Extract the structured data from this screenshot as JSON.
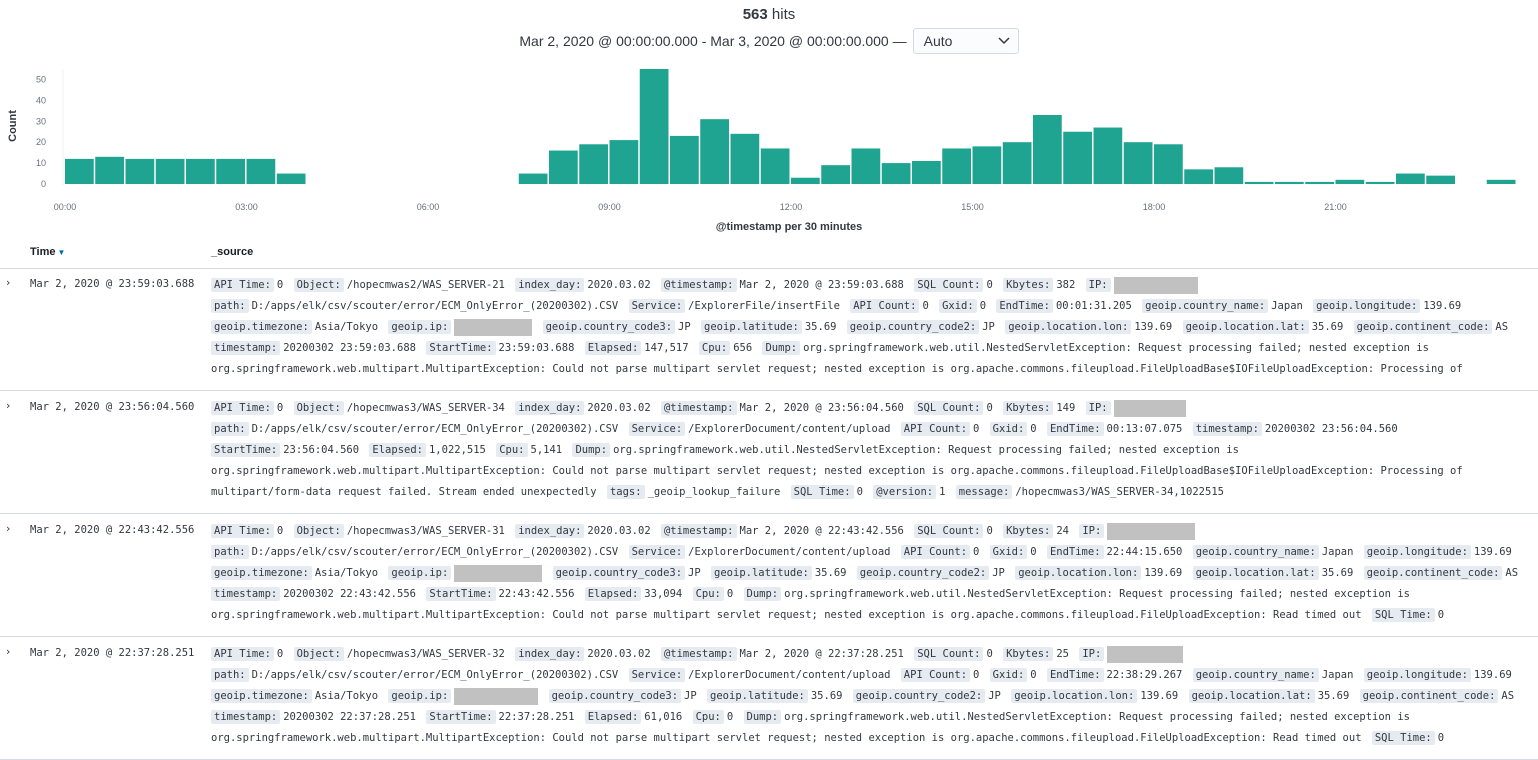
{
  "header": {
    "hit_count": "563",
    "hits_label": "hits",
    "time_range": "Mar 2, 2020 @ 00:00:00.000 - Mar 3, 2020 @ 00:00:00.000 —",
    "interval": "Auto"
  },
  "chart_data": {
    "type": "bar",
    "ylabel": "Count",
    "xlabel": "@timestamp per 30 minutes",
    "ylim": [
      0,
      55
    ],
    "yticks": [
      "0",
      "10",
      "20",
      "30",
      "40",
      "50"
    ],
    "xtick_labels": [
      "00:00",
      "03:00",
      "06:00",
      "09:00",
      "12:00",
      "15:00",
      "18:00",
      "21:00"
    ],
    "color": "#20a492",
    "categories": [
      "00:00",
      "00:30",
      "01:00",
      "01:30",
      "02:00",
      "02:30",
      "03:00",
      "03:30",
      "04:00",
      "04:30",
      "05:00",
      "05:30",
      "06:00",
      "06:30",
      "07:00",
      "07:30",
      "08:00",
      "08:30",
      "09:00",
      "09:30",
      "10:00",
      "10:30",
      "11:00",
      "11:30",
      "12:00",
      "12:30",
      "13:00",
      "13:30",
      "14:00",
      "14:30",
      "15:00",
      "15:30",
      "16:00",
      "16:30",
      "17:00",
      "17:30",
      "18:00",
      "18:30",
      "19:00",
      "19:30",
      "20:00",
      "20:30",
      "21:00",
      "21:30",
      "22:00",
      "22:30",
      "23:00",
      "23:30"
    ],
    "values": [
      12,
      13,
      12,
      12,
      12,
      12,
      12,
      5,
      0,
      0,
      0,
      0,
      0,
      0,
      0,
      5,
      16,
      19,
      21,
      55,
      23,
      31,
      24,
      17,
      3,
      9,
      17,
      10,
      11,
      17,
      18,
      20,
      33,
      25,
      27,
      20,
      19,
      7,
      8,
      1,
      1,
      1,
      2,
      1,
      5,
      4,
      0,
      2
    ]
  },
  "table": {
    "columns": {
      "time": "Time",
      "source": "_source"
    },
    "rows": [
      {
        "time": "Mar 2, 2020 @ 23:59:03.688",
        "fields": [
          {
            "k": "API Time:",
            "v": "0"
          },
          {
            "k": "Object:",
            "v": "/hopecmwas2/WAS_SERVER-21"
          },
          {
            "k": "index_day:",
            "v": "2020.03.02"
          },
          {
            "k": "@timestamp:",
            "v": "Mar 2, 2020 @ 23:59:03.688"
          },
          {
            "k": "SQL Count:",
            "v": "0"
          },
          {
            "k": "Kbytes:",
            "v": "382"
          },
          {
            "k": "IP:",
            "v": "",
            "r": 84
          },
          {
            "k": "path:",
            "v": "D:/apps/elk/csv/scouter/error/ECM_OnlyError_(20200302).CSV"
          },
          {
            "k": "Service:",
            "v": "/ExplorerFile/insertFile"
          },
          {
            "k": "API Count:",
            "v": "0"
          },
          {
            "k": "Gxid:",
            "v": "0"
          },
          {
            "k": "EndTime:",
            "v": "00:01:31.205"
          },
          {
            "k": "geoip.country_name:",
            "v": "Japan"
          },
          {
            "k": "geoip.longitude:",
            "v": "139.69"
          },
          {
            "k": "geoip.timezone:",
            "v": "Asia/Tokyo"
          },
          {
            "k": "geoip.ip:",
            "v": "",
            "r": 78
          },
          {
            "k": "geoip.country_code3:",
            "v": "JP"
          },
          {
            "k": "geoip.latitude:",
            "v": "35.69"
          },
          {
            "k": "geoip.country_code2:",
            "v": "JP"
          },
          {
            "k": "geoip.location.lon:",
            "v": "139.69"
          },
          {
            "k": "geoip.location.lat:",
            "v": "35.69"
          },
          {
            "k": "geoip.continent_code:",
            "v": "AS"
          },
          {
            "k": "timestamp:",
            "v": "20200302 23:59:03.688"
          },
          {
            "k": "StartTime:",
            "v": "23:59:03.688"
          },
          {
            "k": "Elapsed:",
            "v": "147,517"
          },
          {
            "k": "Cpu:",
            "v": "656"
          },
          {
            "k": "Dump:",
            "v": "org.springframework.web.util.NestedServletException: Request processing failed; nested exception is org.springframework.web.multipart.MultipartException: Could not parse multipart servlet request; nested exception is org.apache.commons.fileupload.FileUploadBase$IOFileUploadException: Processing of"
          }
        ]
      },
      {
        "time": "Mar 2, 2020 @ 23:56:04.560",
        "fields": [
          {
            "k": "API Time:",
            "v": "0"
          },
          {
            "k": "Object:",
            "v": "/hopecmwas3/WAS_SERVER-34"
          },
          {
            "k": "index_day:",
            "v": "2020.03.02"
          },
          {
            "k": "@timestamp:",
            "v": "Mar 2, 2020 @ 23:56:04.560"
          },
          {
            "k": "SQL Count:",
            "v": "0"
          },
          {
            "k": "Kbytes:",
            "v": "149"
          },
          {
            "k": "IP:",
            "v": "",
            "r": 72
          },
          {
            "k": "path:",
            "v": "D:/apps/elk/csv/scouter/error/ECM_OnlyError_(20200302).CSV"
          },
          {
            "k": "Service:",
            "v": "/ExplorerDocument/content/upload"
          },
          {
            "k": "API Count:",
            "v": "0"
          },
          {
            "k": "Gxid:",
            "v": "0"
          },
          {
            "k": "EndTime:",
            "v": "00:13:07.075"
          },
          {
            "k": "timestamp:",
            "v": "20200302 23:56:04.560"
          },
          {
            "k": "StartTime:",
            "v": "23:56:04.560"
          },
          {
            "k": "Elapsed:",
            "v": "1,022,515"
          },
          {
            "k": "Cpu:",
            "v": "5,141"
          },
          {
            "k": "Dump:",
            "v": "org.springframework.web.util.NestedServletException: Request processing failed; nested exception is org.springframework.web.multipart.MultipartException: Could not parse multipart servlet request; nested exception is org.apache.commons.fileupload.FileUploadBase$IOFileUploadException: Processing of multipart/form-data request failed. Stream ended unexpectedly"
          },
          {
            "k": "tags:",
            "v": "_geoip_lookup_failure"
          },
          {
            "k": "SQL Time:",
            "v": "0"
          },
          {
            "k": "@version:",
            "v": "1"
          },
          {
            "k": "message:",
            "v": "/hopecmwas3/WAS_SERVER-34,1022515"
          }
        ]
      },
      {
        "time": "Mar 2, 2020 @ 22:43:42.556",
        "fields": [
          {
            "k": "API Time:",
            "v": "0"
          },
          {
            "k": "Object:",
            "v": "/hopecmwas3/WAS_SERVER-31"
          },
          {
            "k": "index_day:",
            "v": "2020.03.02"
          },
          {
            "k": "@timestamp:",
            "v": "Mar 2, 2020 @ 22:43:42.556"
          },
          {
            "k": "SQL Count:",
            "v": "0"
          },
          {
            "k": "Kbytes:",
            "v": "24"
          },
          {
            "k": "IP:",
            "v": "",
            "r": 88
          },
          {
            "k": "path:",
            "v": "D:/apps/elk/csv/scouter/error/ECM_OnlyError_(20200302).CSV"
          },
          {
            "k": "Service:",
            "v": "/ExplorerDocument/content/upload"
          },
          {
            "k": "API Count:",
            "v": "0"
          },
          {
            "k": "Gxid:",
            "v": "0"
          },
          {
            "k": "EndTime:",
            "v": "22:44:15.650"
          },
          {
            "k": "geoip.country_name:",
            "v": "Japan"
          },
          {
            "k": "geoip.longitude:",
            "v": "139.69"
          },
          {
            "k": "geoip.timezone:",
            "v": "Asia/Tokyo"
          },
          {
            "k": "geoip.ip:",
            "v": "",
            "r": 88
          },
          {
            "k": "geoip.country_code3:",
            "v": "JP"
          },
          {
            "k": "geoip.latitude:",
            "v": "35.69"
          },
          {
            "k": "geoip.country_code2:",
            "v": "JP"
          },
          {
            "k": "geoip.location.lon:",
            "v": "139.69"
          },
          {
            "k": "geoip.location.lat:",
            "v": "35.69"
          },
          {
            "k": "geoip.continent_code:",
            "v": "AS"
          },
          {
            "k": "timestamp:",
            "v": "20200302 22:43:42.556"
          },
          {
            "k": "StartTime:",
            "v": "22:43:42.556"
          },
          {
            "k": "Elapsed:",
            "v": "33,094"
          },
          {
            "k": "Cpu:",
            "v": "0"
          },
          {
            "k": "Dump:",
            "v": "org.springframework.web.util.NestedServletException: Request processing failed; nested exception is org.springframework.web.multipart.MultipartException: Could not parse multipart servlet request; nested exception is org.apache.commons.fileupload.FileUploadException: Read timed out"
          },
          {
            "k": "SQL Time:",
            "v": "0"
          }
        ]
      },
      {
        "time": "Mar 2, 2020 @ 22:37:28.251",
        "fields": [
          {
            "k": "API Time:",
            "v": "0"
          },
          {
            "k": "Object:",
            "v": "/hopecmwas3/WAS_SERVER-32"
          },
          {
            "k": "index_day:",
            "v": "2020.03.02"
          },
          {
            "k": "@timestamp:",
            "v": "Mar 2, 2020 @ 22:37:28.251"
          },
          {
            "k": "SQL Count:",
            "v": "0"
          },
          {
            "k": "Kbytes:",
            "v": "25"
          },
          {
            "k": "IP:",
            "v": "",
            "r": 76
          },
          {
            "k": "path:",
            "v": "D:/apps/elk/csv/scouter/error/ECM_OnlyError_(20200302).CSV"
          },
          {
            "k": "Service:",
            "v": "/ExplorerDocument/content/upload"
          },
          {
            "k": "API Count:",
            "v": "0"
          },
          {
            "k": "Gxid:",
            "v": "0"
          },
          {
            "k": "EndTime:",
            "v": "22:38:29.267"
          },
          {
            "k": "geoip.country_name:",
            "v": "Japan"
          },
          {
            "k": "geoip.longitude:",
            "v": "139.69"
          },
          {
            "k": "geoip.timezone:",
            "v": "Asia/Tokyo"
          },
          {
            "k": "geoip.ip:",
            "v": "",
            "r": 84
          },
          {
            "k": "geoip.country_code3:",
            "v": "JP"
          },
          {
            "k": "geoip.latitude:",
            "v": "35.69"
          },
          {
            "k": "geoip.country_code2:",
            "v": "JP"
          },
          {
            "k": "geoip.location.lon:",
            "v": "139.69"
          },
          {
            "k": "geoip.location.lat:",
            "v": "35.69"
          },
          {
            "k": "geoip.continent_code:",
            "v": "AS"
          },
          {
            "k": "timestamp:",
            "v": "20200302 22:37:28.251"
          },
          {
            "k": "StartTime:",
            "v": "22:37:28.251"
          },
          {
            "k": "Elapsed:",
            "v": "61,016"
          },
          {
            "k": "Cpu:",
            "v": "0"
          },
          {
            "k": "Dump:",
            "v": "org.springframework.web.util.NestedServletException: Request processing failed; nested exception is org.springframework.web.multipart.MultipartException: Could not parse multipart servlet request; nested exception is org.apache.commons.fileupload.FileUploadException: Read timed out"
          },
          {
            "k": "SQL Time:",
            "v": "0"
          }
        ]
      }
    ]
  }
}
